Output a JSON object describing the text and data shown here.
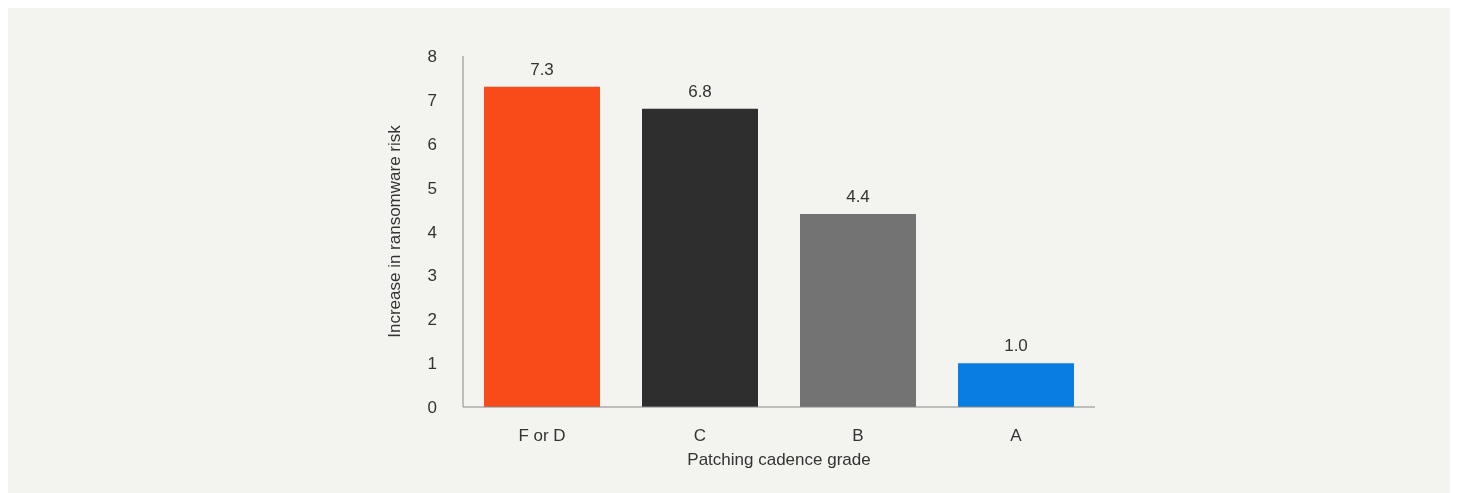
{
  "chart_data": {
    "type": "bar",
    "xlabel": "Patching cadence grade",
    "ylabel": "Increase in ransomware risk",
    "categories": [
      "F or D",
      "C",
      "B",
      "A"
    ],
    "values": [
      7.3,
      6.8,
      4.4,
      1.0
    ],
    "colors": [
      "#f94b19",
      "#2e2e2e",
      "#737373",
      "#0a7de3"
    ],
    "ylim": [
      0,
      8
    ],
    "yticks": [
      0,
      1,
      2,
      3,
      4,
      5,
      6,
      7,
      8
    ],
    "value_labels": [
      "7.3",
      "6.8",
      "4.4",
      "1.0"
    ]
  }
}
